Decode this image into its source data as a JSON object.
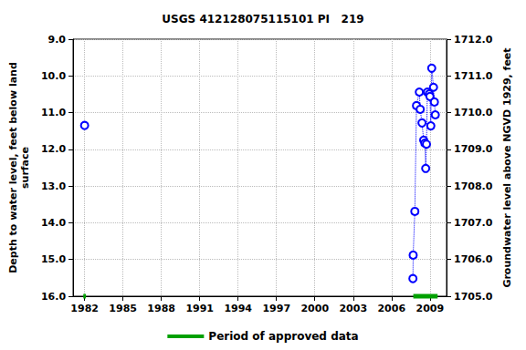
{
  "chart_data": {
    "type": "scatter",
    "title": "USGS 412128075115101 PI   219",
    "y_label": "Depth to water level, feet below land\nsurface",
    "y2_label": "Groundwater level above NGVD 1929, feet",
    "xlim": [
      1981.1,
      2010.3
    ],
    "xticks": [
      1982,
      1985,
      1988,
      1991,
      1994,
      1997,
      2000,
      2003,
      2006,
      2009
    ],
    "ylim": [
      9,
      16
    ],
    "yticks": [
      {
        "value": 9,
        "label": "9.0"
      },
      {
        "value": 10,
        "label": "10.0"
      },
      {
        "value": 11,
        "label": "11.0"
      },
      {
        "value": 12,
        "label": "12.0"
      },
      {
        "value": 13,
        "label": "13.0"
      },
      {
        "value": 14,
        "label": "14.0"
      },
      {
        "value": 15,
        "label": "15.0"
      },
      {
        "value": 16,
        "label": "16.0"
      }
    ],
    "y2lim": [
      1705,
      1712
    ],
    "y2ticks": [
      {
        "value": 1705,
        "label": "1705.0"
      },
      {
        "value": 1706,
        "label": "1706.0"
      },
      {
        "value": 1707,
        "label": "1707.0"
      },
      {
        "value": 1708,
        "label": "1708.0"
      },
      {
        "value": 1709,
        "label": "1709.0"
      },
      {
        "value": 1710,
        "label": "1710.0"
      },
      {
        "value": 1711,
        "label": "1711.0"
      },
      {
        "value": 1712,
        "label": "1712.0"
      }
    ],
    "series": [
      {
        "x": [
          1982.0
        ],
        "values": [
          11.35
        ],
        "color": "#0000ff",
        "marker": "circle",
        "line_style": "dotted"
      },
      {
        "x": [
          2007.67,
          2007.69,
          2007.82,
          2007.95,
          2008.17,
          2008.24,
          2008.38,
          2008.51,
          2008.6,
          2008.67,
          2008.73,
          2008.8,
          2008.95,
          2009.0,
          2009.07,
          2009.14,
          2009.28,
          2009.35,
          2009.42
        ],
        "values": [
          15.52,
          14.88,
          13.69,
          10.81,
          10.44,
          10.91,
          11.28,
          11.75,
          11.83,
          12.52,
          11.86,
          10.44,
          10.49,
          10.56,
          11.36,
          9.79,
          10.31,
          10.71,
          11.06
        ],
        "color": "#0000ff",
        "marker": "circle",
        "line_style": "dotted"
      }
    ],
    "approved_periods": {
      "name": "Period of approved data",
      "color": "#00a000",
      "ranges": [
        [
          1981.9,
          1982.1
        ],
        [
          2007.7,
          2009.6
        ]
      ]
    },
    "legend": "bottom",
    "grid": true
  }
}
